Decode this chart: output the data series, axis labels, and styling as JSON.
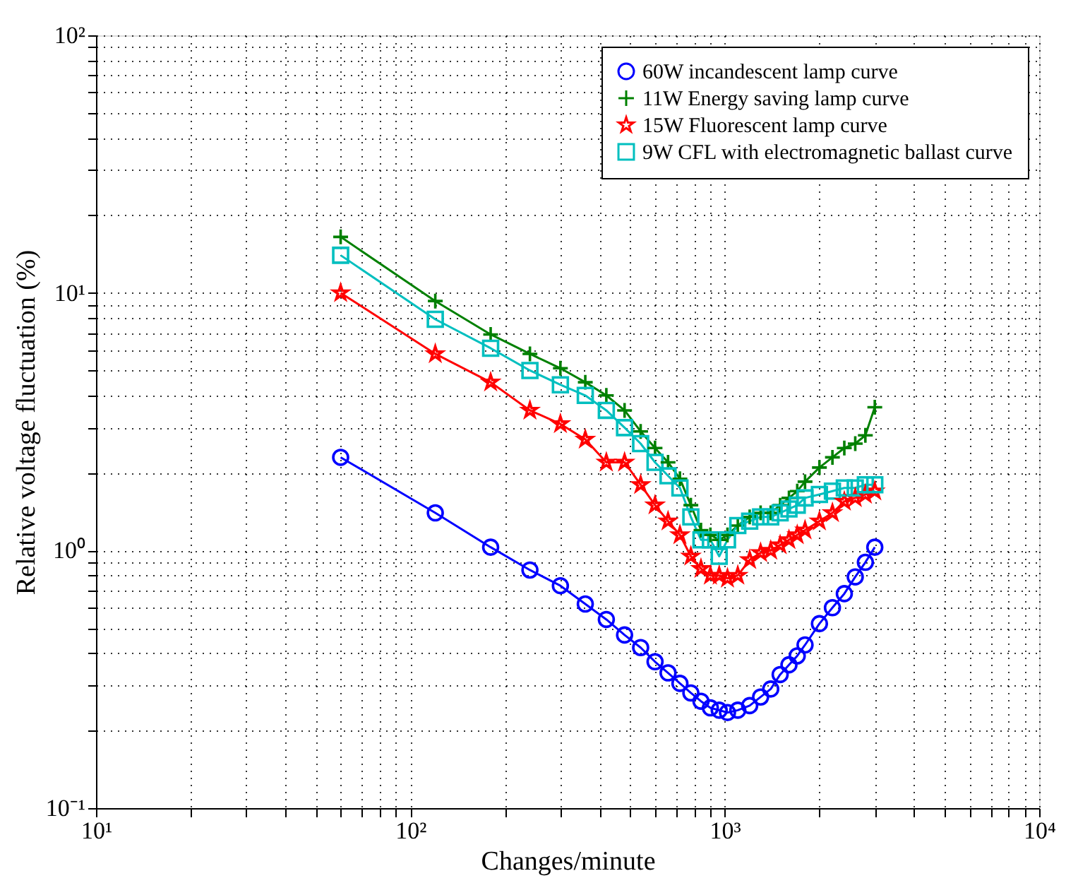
{
  "chart_data": {
    "type": "line",
    "xlabel": "Changes/minute",
    "ylabel": "Relative voltage fluctuation (%)",
    "log": "xy",
    "grid": true,
    "line_style": "solid",
    "legend": "top right",
    "xlim": [
      10,
      10000
    ],
    "ylim": [
      0.1,
      100
    ],
    "xticks": [
      {
        "value": 10,
        "label": "10¹"
      },
      {
        "value": 20,
        "label": null
      },
      {
        "value": 30,
        "label": null
      },
      {
        "value": 40,
        "label": null
      },
      {
        "value": 50,
        "label": null
      },
      {
        "value": 60,
        "label": null
      },
      {
        "value": 70,
        "label": null
      },
      {
        "value": 80,
        "label": null
      },
      {
        "value": 90,
        "label": null
      },
      {
        "value": 100,
        "label": "10²"
      },
      {
        "value": 200,
        "label": null
      },
      {
        "value": 300,
        "label": null
      },
      {
        "value": 400,
        "label": null
      },
      {
        "value": 500,
        "label": null
      },
      {
        "value": 600,
        "label": null
      },
      {
        "value": 700,
        "label": null
      },
      {
        "value": 800,
        "label": null
      },
      {
        "value": 900,
        "label": null
      },
      {
        "value": 1000,
        "label": "10³"
      },
      {
        "value": 2000,
        "label": null
      },
      {
        "value": 3000,
        "label": null
      },
      {
        "value": 4000,
        "label": null
      },
      {
        "value": 5000,
        "label": null
      },
      {
        "value": 6000,
        "label": null
      },
      {
        "value": 7000,
        "label": null
      },
      {
        "value": 8000,
        "label": null
      },
      {
        "value": 9000,
        "label": null
      },
      {
        "value": 10000,
        "label": "10⁴"
      }
    ],
    "yticks": [
      {
        "value": 0.1,
        "label": "10⁻¹"
      },
      {
        "value": 0.2,
        "label": null
      },
      {
        "value": 0.3,
        "label": null
      },
      {
        "value": 0.4,
        "label": null
      },
      {
        "value": 0.5,
        "label": null
      },
      {
        "value": 0.6,
        "label": null
      },
      {
        "value": 0.7,
        "label": null
      },
      {
        "value": 0.8,
        "label": null
      },
      {
        "value": 0.9,
        "label": null
      },
      {
        "value": 1,
        "label": "10⁰"
      },
      {
        "value": 2,
        "label": null
      },
      {
        "value": 3,
        "label": null
      },
      {
        "value": 4,
        "label": null
      },
      {
        "value": 5,
        "label": null
      },
      {
        "value": 6,
        "label": null
      },
      {
        "value": 7,
        "label": null
      },
      {
        "value": 8,
        "label": null
      },
      {
        "value": 9,
        "label": null
      },
      {
        "value": 10,
        "label": "10¹"
      },
      {
        "value": 20,
        "label": null
      },
      {
        "value": 30,
        "label": null
      },
      {
        "value": 40,
        "label": null
      },
      {
        "value": 50,
        "label": null
      },
      {
        "value": 60,
        "label": null
      },
      {
        "value": 70,
        "label": null
      },
      {
        "value": 80,
        "label": null
      },
      {
        "value": 90,
        "label": null
      },
      {
        "value": 100,
        "label": "10²"
      }
    ],
    "x": [
      60,
      120,
      180,
      240,
      300,
      360,
      420,
      480,
      540,
      600,
      660,
      720,
      780,
      840,
      900,
      960,
      1020,
      1100,
      1200,
      1300,
      1400,
      1500,
      1600,
      1700,
      1800,
      2000,
      2200,
      2400,
      2600,
      2800,
      3000
    ],
    "series": [
      {
        "name": "60W incandescent lamp curve",
        "color": "#0000ff",
        "marker": "circle",
        "values": [
          2.3,
          1.4,
          1.03,
          0.84,
          0.73,
          0.62,
          0.54,
          0.47,
          0.42,
          0.37,
          0.335,
          0.305,
          0.28,
          0.26,
          0.245,
          0.24,
          0.235,
          0.24,
          0.25,
          0.27,
          0.29,
          0.33,
          0.36,
          0.39,
          0.43,
          0.52,
          0.6,
          0.68,
          0.79,
          0.9,
          1.03
        ]
      },
      {
        "name": "11W Energy saving lamp curve",
        "color": "#008000",
        "marker": "cross",
        "values": [
          16.5,
          9.3,
          6.9,
          5.8,
          5.1,
          4.5,
          4.0,
          3.5,
          2.9,
          2.5,
          2.2,
          1.9,
          1.5,
          1.2,
          1.15,
          1.1,
          1.15,
          1.25,
          1.35,
          1.4,
          1.4,
          1.5,
          1.6,
          1.7,
          1.85,
          2.1,
          2.3,
          2.5,
          2.6,
          2.8,
          3.6
        ]
      },
      {
        "name": "15W Fluorescent lamp curve",
        "color": "#ff0000",
        "marker": "star",
        "values": [
          10,
          5.8,
          4.5,
          3.5,
          3.1,
          2.7,
          2.2,
          2.2,
          1.8,
          1.5,
          1.3,
          1.15,
          0.95,
          0.85,
          0.8,
          0.8,
          0.78,
          0.8,
          0.92,
          0.98,
          1.0,
          1.05,
          1.1,
          1.15,
          1.2,
          1.3,
          1.4,
          1.55,
          1.6,
          1.65,
          1.7
        ]
      },
      {
        "name": "9W CFL with electromagnetic ballast curve",
        "color": "#00bfbf",
        "marker": "square",
        "values": [
          14,
          7.9,
          6.1,
          5.0,
          4.4,
          4.0,
          3.5,
          3.0,
          2.6,
          2.2,
          1.95,
          1.75,
          1.35,
          1.1,
          1.1,
          0.95,
          1.1,
          1.25,
          1.3,
          1.35,
          1.35,
          1.4,
          1.45,
          1.5,
          1.6,
          1.65,
          1.7,
          1.75,
          1.75,
          1.8,
          1.8
        ]
      }
    ]
  }
}
